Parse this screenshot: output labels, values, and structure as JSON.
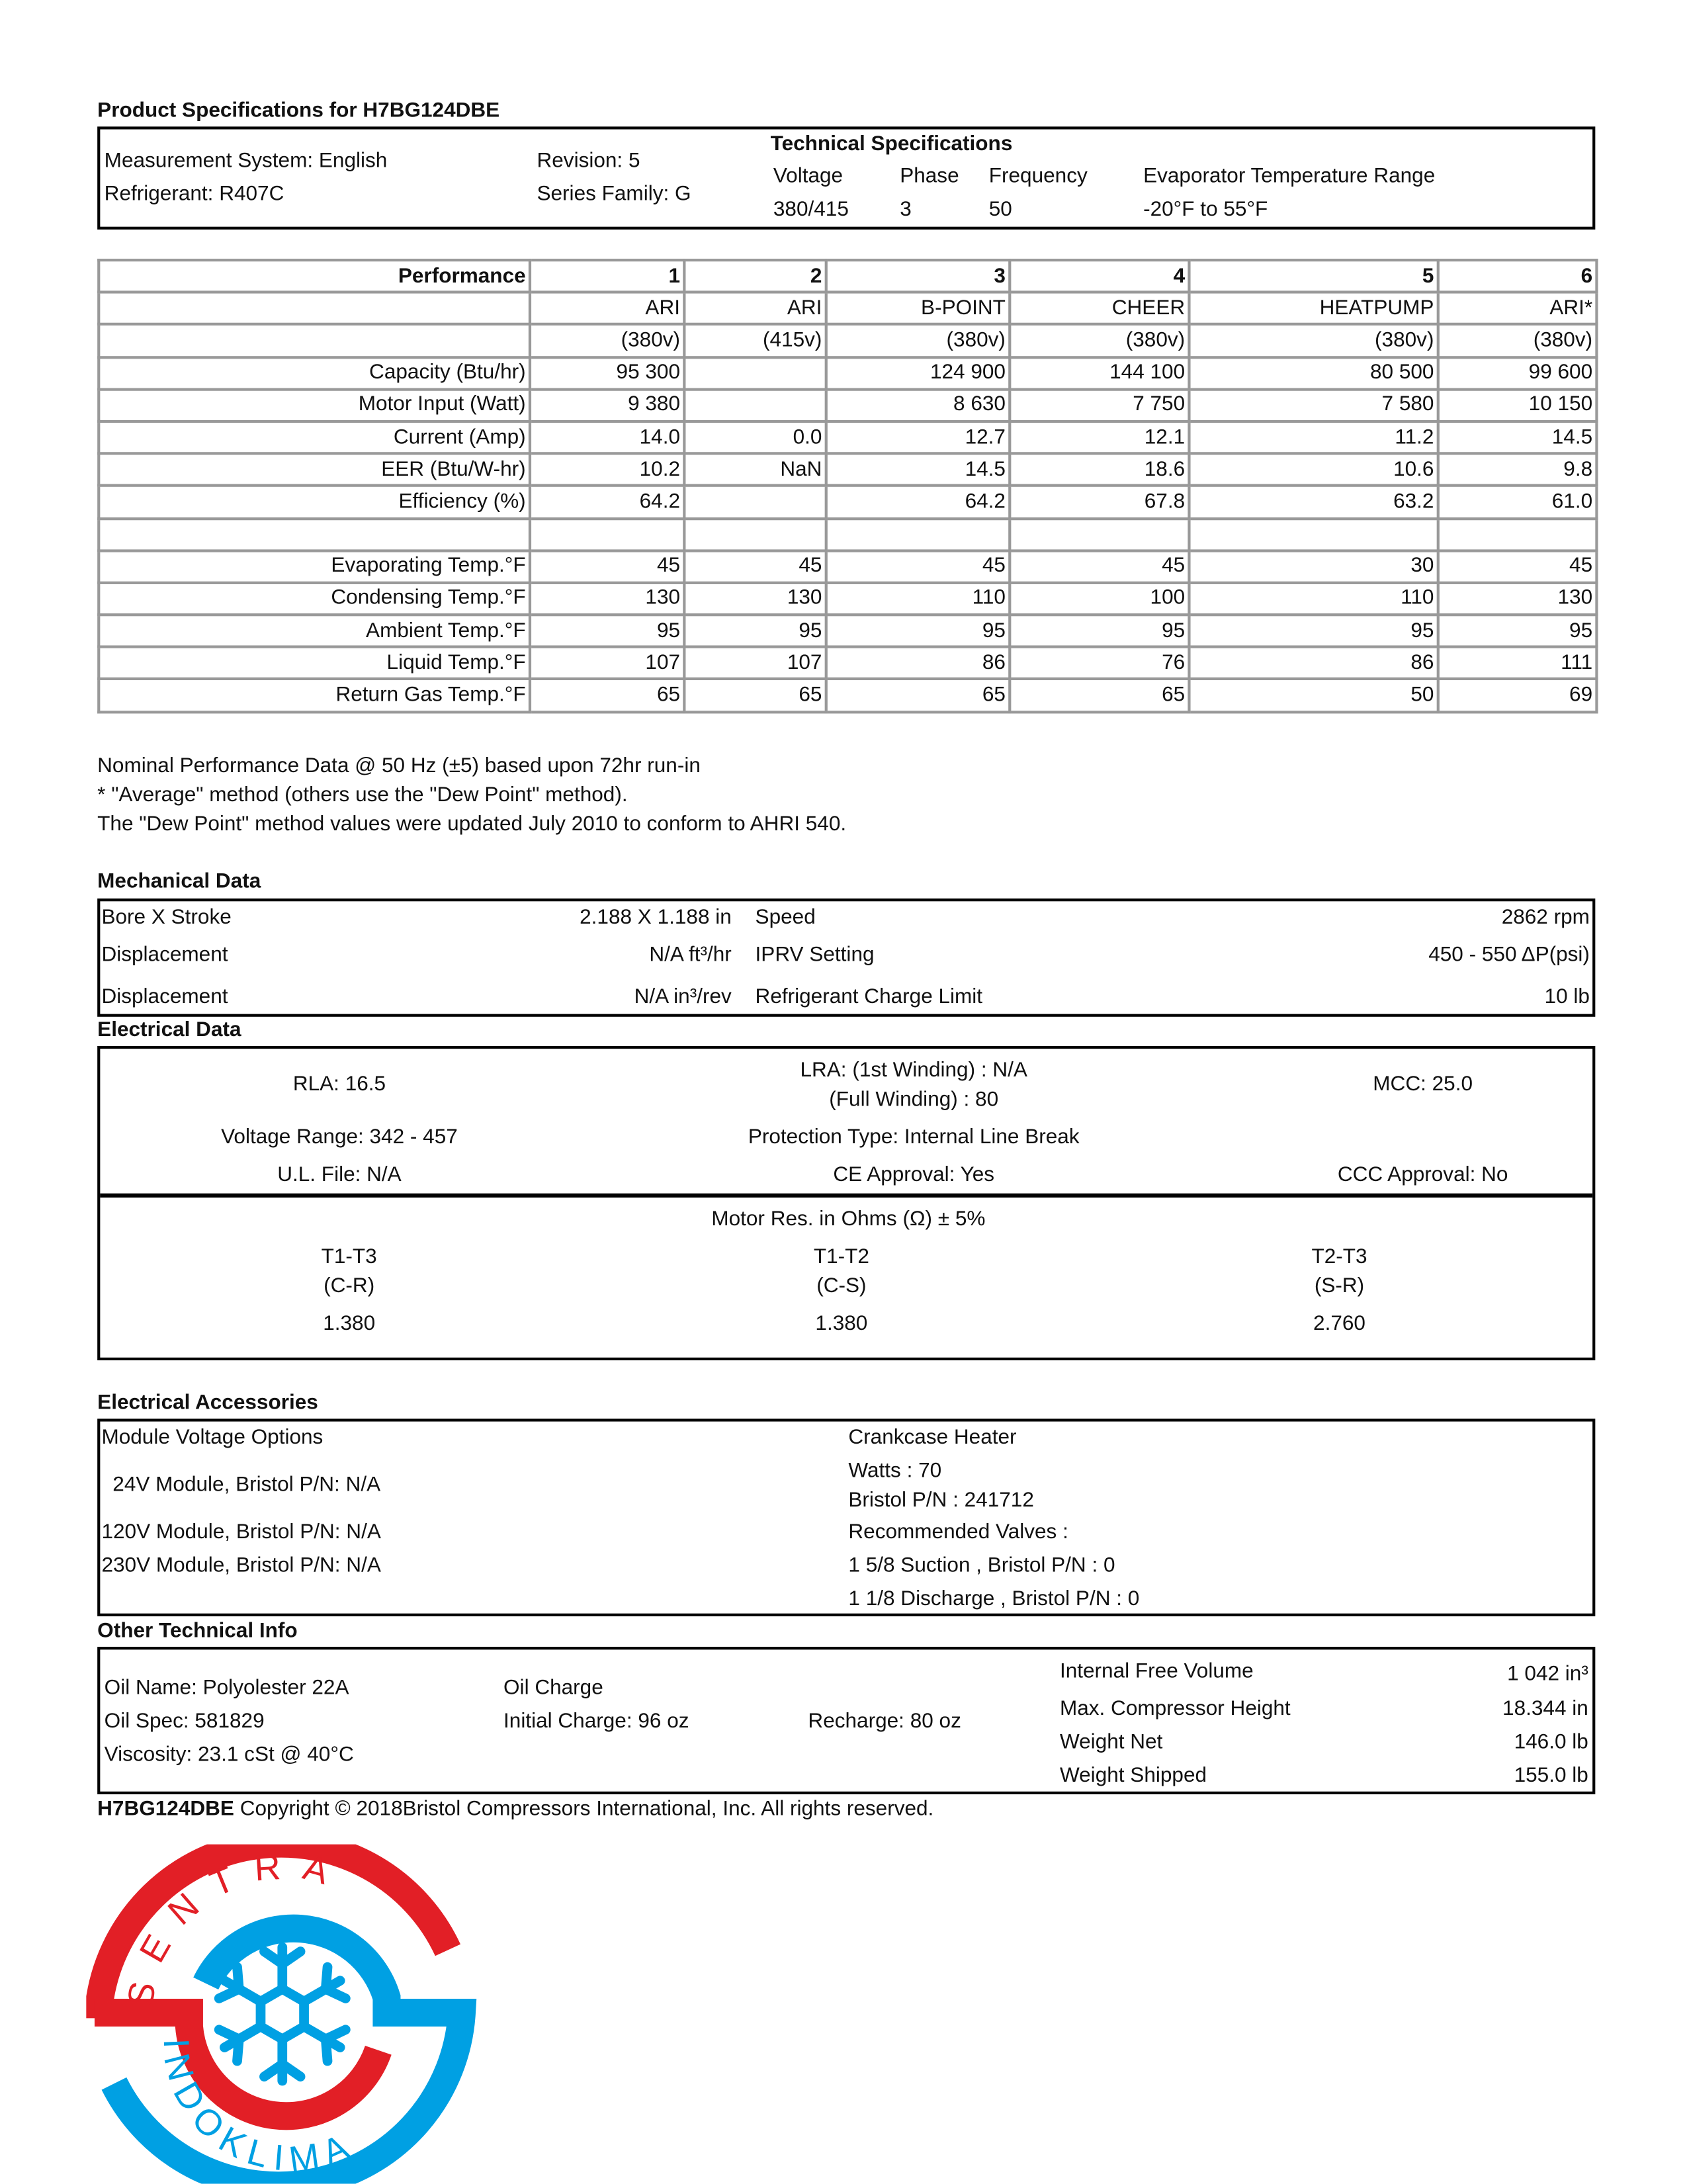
{
  "title": "Product Specifications for H7BG124DBE",
  "summary": {
    "measurement_system": "Measurement System: English",
    "refrigerant": "Refrigerant: R407C",
    "revision": "Revision: 5",
    "series_family": "Series Family: G",
    "tech_title": "Technical Specifications",
    "headers": [
      "Voltage",
      "Phase",
      "Frequency",
      "Evaporator Temperature Range"
    ],
    "values": [
      "380/415",
      "3",
      "50",
      "-20°F to 55°F"
    ]
  },
  "performance": {
    "col_widths_note": "",
    "rows": [
      [
        "Performance",
        "1",
        "2",
        "3",
        "4",
        "5",
        "6"
      ],
      [
        "",
        "ARI",
        "ARI",
        "B-POINT",
        "CHEER",
        "HEATPUMP",
        "ARI*"
      ],
      [
        "",
        "(380v)",
        "(415v)",
        "(380v)",
        "(380v)",
        "(380v)",
        "(380v)"
      ],
      [
        "Capacity (Btu/hr)",
        "95 300",
        "",
        "124 900",
        "144 100",
        "80 500",
        "99 600"
      ],
      [
        "Motor Input (Watt)",
        "9 380",
        "",
        "8 630",
        "7 750",
        "7 580",
        "10 150"
      ],
      [
        "Current (Amp)",
        "14.0",
        "0.0",
        "12.7",
        "12.1",
        "11.2",
        "14.5"
      ],
      [
        "EER (Btu/W-hr)",
        "10.2",
        "NaN",
        "14.5",
        "18.6",
        "10.6",
        "9.8"
      ],
      [
        "Efficiency (%)",
        "64.2",
        "",
        "64.2",
        "67.8",
        "63.2",
        "61.0"
      ],
      [
        "",
        "",
        "",
        "",
        "",
        "",
        ""
      ],
      [
        "Evaporating Temp.°F",
        "45",
        "45",
        "45",
        "45",
        "30",
        "45"
      ],
      [
        "Condensing Temp.°F",
        "130",
        "130",
        "110",
        "100",
        "110",
        "130"
      ],
      [
        "Ambient Temp.°F",
        "95",
        "95",
        "95",
        "95",
        "95",
        "95"
      ],
      [
        "Liquid Temp.°F",
        "107",
        "107",
        "86",
        "76",
        "86",
        "111"
      ],
      [
        "Return Gas Temp.°F",
        "65",
        "65",
        "65",
        "65",
        "50",
        "69"
      ]
    ],
    "notes": [
      "Nominal Performance Data @ 50 Hz (±5) based upon 72hr run-in",
      "* \"Average\" method (others use the \"Dew Point\" method).",
      "The \"Dew Point\" method values were updated July 2010 to conform to AHRI 540."
    ]
  },
  "mechanical": {
    "title": "Mechanical Data",
    "rows": [
      {
        "label": "Bore X Stroke",
        "value": "2.188 X  1.188 in",
        "label2": "Speed",
        "value2": "2862 rpm"
      },
      {
        "label": "Displacement",
        "value": "N/A ft³/hr",
        "label2": "IPRV Setting",
        "value2": "450 - 550 ΔP(psi)"
      },
      {
        "label": "Displacement",
        "value": "N/A in³/rev",
        "label2": "Refrigerant Charge Limit",
        "value2": "10 lb"
      }
    ]
  },
  "electrical": {
    "title": "Electrical Data",
    "rla": "RLA: 16.5",
    "lra1": "LRA: (1st Winding) : N/A",
    "lra2": "(Full Winding) : 80",
    "mcc": "MCC: 25.0",
    "voltage_range": "Voltage Range: 342 - 457",
    "protection": "Protection Type: Internal Line Break",
    "ul_file": "U.L. File: N/A",
    "ce": "CE Approval: Yes",
    "ccc": "CCC Approval: No",
    "motor_title": "Motor Res. in Ohms (Ω) ± 5%",
    "motor": [
      {
        "pair": "T1-T3",
        "code": "(C-R)",
        "value": "1.380"
      },
      {
        "pair": "T1-T2",
        "code": "(C-S)",
        "value": "1.380"
      },
      {
        "pair": "T2-T3",
        "code": "(S-R)",
        "value": "2.760"
      }
    ]
  },
  "accessories": {
    "title": "Electrical Accessories",
    "module_title": "Module Voltage Options",
    "m24": "24V Module, Bristol P/N:  N/A",
    "m120": "120V Module, Bristol P/N: N/A",
    "m230": "230V Module, Bristol P/N: N/A",
    "heater_title": "Crankcase Heater",
    "watts": "Watts : 70",
    "heater_pn": "Bristol P/N : 241712",
    "valves_title": "Recommended Valves :",
    "suction": "1 5/8 Suction , Bristol P/N : 0",
    "discharge": "1 1/8 Discharge , Bristol P/N : 0"
  },
  "other": {
    "title": "Other Technical Info",
    "oil_name": "Oil Name: Polyolester 22A",
    "oil_spec": "Oil Spec: 581829",
    "viscosity": "Viscosity: 23.1 cSt @ 40°C",
    "oil_charge": "Oil Charge",
    "initial_charge": "Initial Charge: 96 oz",
    "recharge": "Recharge: 80 oz",
    "right": [
      {
        "label": "Internal Free Volume",
        "value": "1 042 in³"
      },
      {
        "label": "Max. Compressor Height",
        "value": "18.344 in"
      },
      {
        "label": "Weight Net",
        "value": "146.0 lb"
      },
      {
        "label": "Weight Shipped",
        "value": "155.0 lb"
      }
    ]
  },
  "footer": {
    "model": "H7BG124DBE",
    "copyright": " Copyright © 2018Bristol Compressors International, Inc. All rights reserved."
  },
  "logo": {
    "top_text": "SENTRA",
    "bottom_text": "INDOKLIMA",
    "red": "#e21f26",
    "blue": "#00a0e3"
  }
}
